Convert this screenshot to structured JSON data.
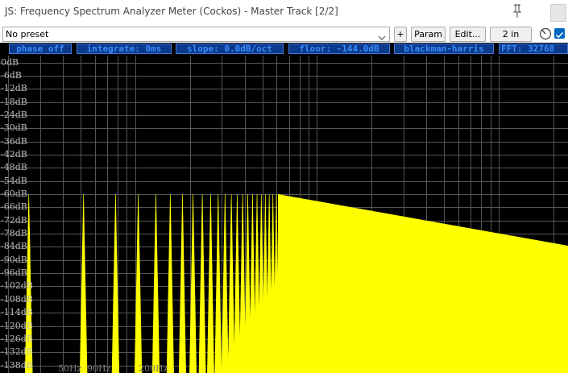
{
  "window": {
    "title": "JS: Frequency Spectrum Analyzer Meter (Cockos) - Master Track [2/2]"
  },
  "toolbar": {
    "preset_value": "No preset",
    "plus_label": "+",
    "param_label": "Param",
    "edit_label": "Edit...",
    "io_label": "2 in",
    "enabled_checked": true
  },
  "status": {
    "phase": "phase off",
    "integrate": "integrate: 0ms",
    "slope": "slope: 0.0dB/oct",
    "floor": "floor: -144.0dB",
    "window": "blackman-harris",
    "fft": "FFT: 32768"
  },
  "db_labels": [
    "0dB",
    "-6dB",
    "-12dB",
    "-18dB",
    "-24dB",
    "-30dB",
    "-36dB",
    "-42dB",
    "-48dB",
    "-54dB",
    "-60dB",
    "-66dB",
    "-72dB",
    "-78dB",
    "-84dB",
    "-90dB",
    "-96dB",
    "-102dB",
    "-108dB",
    "-114dB",
    "-120dB",
    "-126dB",
    "-132dB",
    "-138dB"
  ],
  "freq_labels": [
    "50Hz",
    "90Hz",
    "200Hz"
  ],
  "colors": {
    "spectrum": "#ffff00",
    "grid": "#555555",
    "status_text": "#3a8cff",
    "status_bg": "#0b3a8c"
  }
}
